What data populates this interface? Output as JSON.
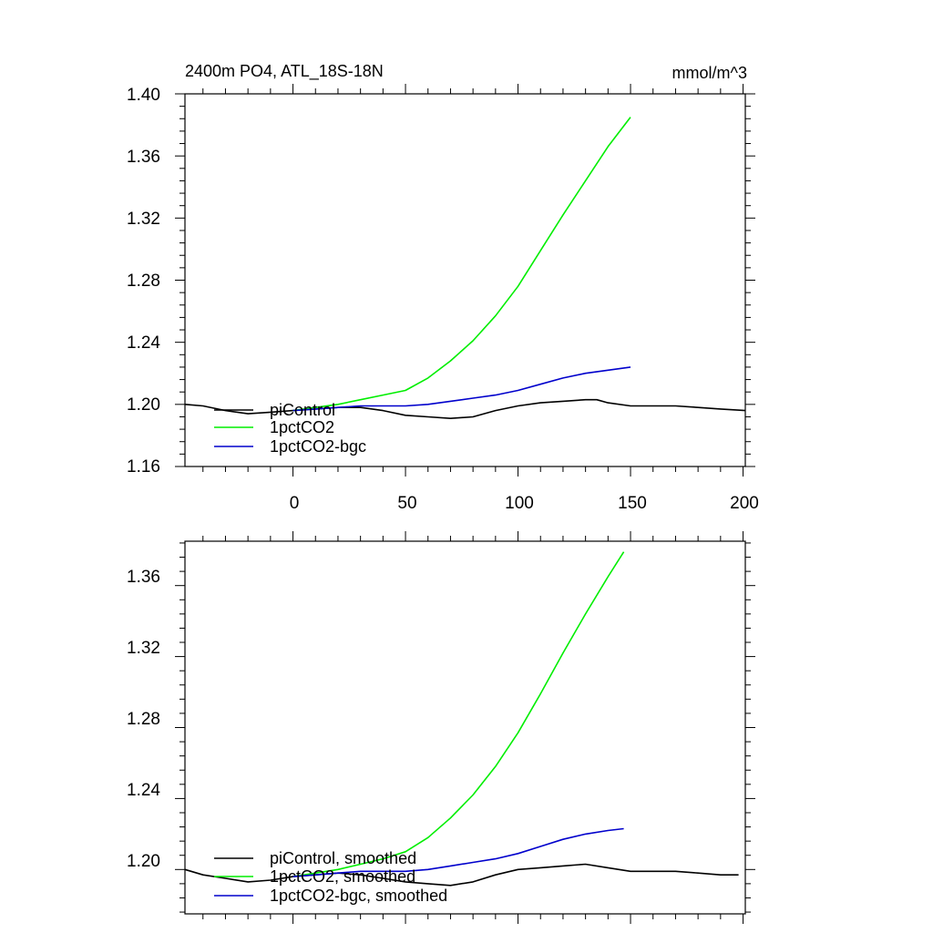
{
  "chart_data": [
    {
      "type": "line",
      "id": "top",
      "title": "2400m PO4, ATL_18S-18N",
      "units": "mmol/m^3",
      "xlim": [
        -48,
        201
      ],
      "ylim": [
        1.16,
        1.4
      ],
      "xticks": [
        0,
        50,
        100,
        150,
        200
      ],
      "xtick_labels": [
        "0",
        "50",
        "100",
        "150",
        "200"
      ],
      "yticks": [
        1.16,
        1.2,
        1.24,
        1.28,
        1.32,
        1.36,
        1.4
      ],
      "ytick_labels": [
        "1.16",
        "1.20",
        "1.24",
        "1.28",
        "1.32",
        "1.36",
        "1.40"
      ],
      "legend_position": "bottom-left",
      "series": [
        {
          "name": "piControl",
          "color": "#000000",
          "x": [
            -48,
            -40,
            -30,
            -20,
            -10,
            0,
            10,
            20,
            30,
            40,
            50,
            60,
            70,
            80,
            90,
            100,
            110,
            120,
            130,
            135,
            140,
            150,
            160,
            170,
            180,
            190,
            201
          ],
          "y": [
            1.2,
            1.199,
            1.196,
            1.194,
            1.195,
            1.196,
            1.197,
            1.198,
            1.198,
            1.196,
            1.193,
            1.192,
            1.191,
            1.192,
            1.196,
            1.199,
            1.201,
            1.202,
            1.203,
            1.203,
            1.201,
            1.199,
            1.199,
            1.199,
            1.198,
            1.197,
            1.196
          ]
        },
        {
          "name": "1pctCO2",
          "color": "#00ee00",
          "x": [
            0,
            10,
            20,
            30,
            40,
            50,
            60,
            70,
            80,
            90,
            100,
            110,
            120,
            130,
            140,
            150
          ],
          "y": [
            1.196,
            1.198,
            1.2,
            1.203,
            1.206,
            1.209,
            1.217,
            1.228,
            1.241,
            1.257,
            1.276,
            1.299,
            1.322,
            1.344,
            1.366,
            1.385
          ]
        },
        {
          "name": "1pctCO2-bgc",
          "color": "#0000cc",
          "x": [
            0,
            10,
            20,
            30,
            40,
            50,
            60,
            70,
            80,
            90,
            100,
            110,
            120,
            130,
            140,
            150
          ],
          "y": [
            1.196,
            1.197,
            1.198,
            1.199,
            1.199,
            1.199,
            1.2,
            1.202,
            1.204,
            1.206,
            1.209,
            1.213,
            1.217,
            1.22,
            1.222,
            1.224
          ]
        }
      ]
    },
    {
      "type": "line",
      "id": "bottom",
      "title": "",
      "units": "",
      "xlim": [
        -48,
        201
      ],
      "ylim": [
        1.175,
        1.385
      ],
      "xticks": [
        0,
        50,
        100,
        150,
        200
      ],
      "xtick_labels": [
        "",
        "",
        "",
        "",
        ""
      ],
      "yticks": [
        1.2,
        1.24,
        1.28,
        1.32,
        1.36
      ],
      "ytick_labels": [
        "1.20",
        "1.24",
        "1.28",
        "1.32",
        "1.36"
      ],
      "legend_position": "bottom-left",
      "series": [
        {
          "name": "piControl, smoothed",
          "color": "#000000",
          "x": [
            -48,
            -40,
            -30,
            -20,
            -10,
            0,
            10,
            20,
            30,
            40,
            50,
            60,
            70,
            80,
            90,
            100,
            110,
            120,
            130,
            140,
            150,
            160,
            170,
            180,
            190,
            198
          ],
          "y": [
            1.2,
            1.197,
            1.195,
            1.193,
            1.194,
            1.196,
            1.197,
            1.198,
            1.197,
            1.195,
            1.193,
            1.192,
            1.191,
            1.193,
            1.197,
            1.2,
            1.201,
            1.202,
            1.203,
            1.201,
            1.199,
            1.199,
            1.199,
            1.198,
            1.197,
            1.197
          ]
        },
        {
          "name": "1pctCO2, smoothed",
          "color": "#00ee00",
          "x": [
            0,
            10,
            20,
            30,
            40,
            50,
            60,
            70,
            80,
            90,
            100,
            110,
            120,
            130,
            140,
            147
          ],
          "y": [
            1.196,
            1.198,
            1.2,
            1.203,
            1.206,
            1.21,
            1.218,
            1.229,
            1.242,
            1.258,
            1.277,
            1.299,
            1.322,
            1.344,
            1.365,
            1.379
          ]
        },
        {
          "name": "1pctCO2-bgc, smoothed",
          "color": "#0000cc",
          "x": [
            0,
            10,
            20,
            30,
            40,
            50,
            60,
            70,
            80,
            90,
            100,
            110,
            120,
            130,
            140,
            147
          ],
          "y": [
            1.196,
            1.197,
            1.198,
            1.199,
            1.199,
            1.199,
            1.2,
            1.202,
            1.204,
            1.206,
            1.209,
            1.213,
            1.217,
            1.22,
            1.222,
            1.223
          ]
        }
      ]
    }
  ]
}
